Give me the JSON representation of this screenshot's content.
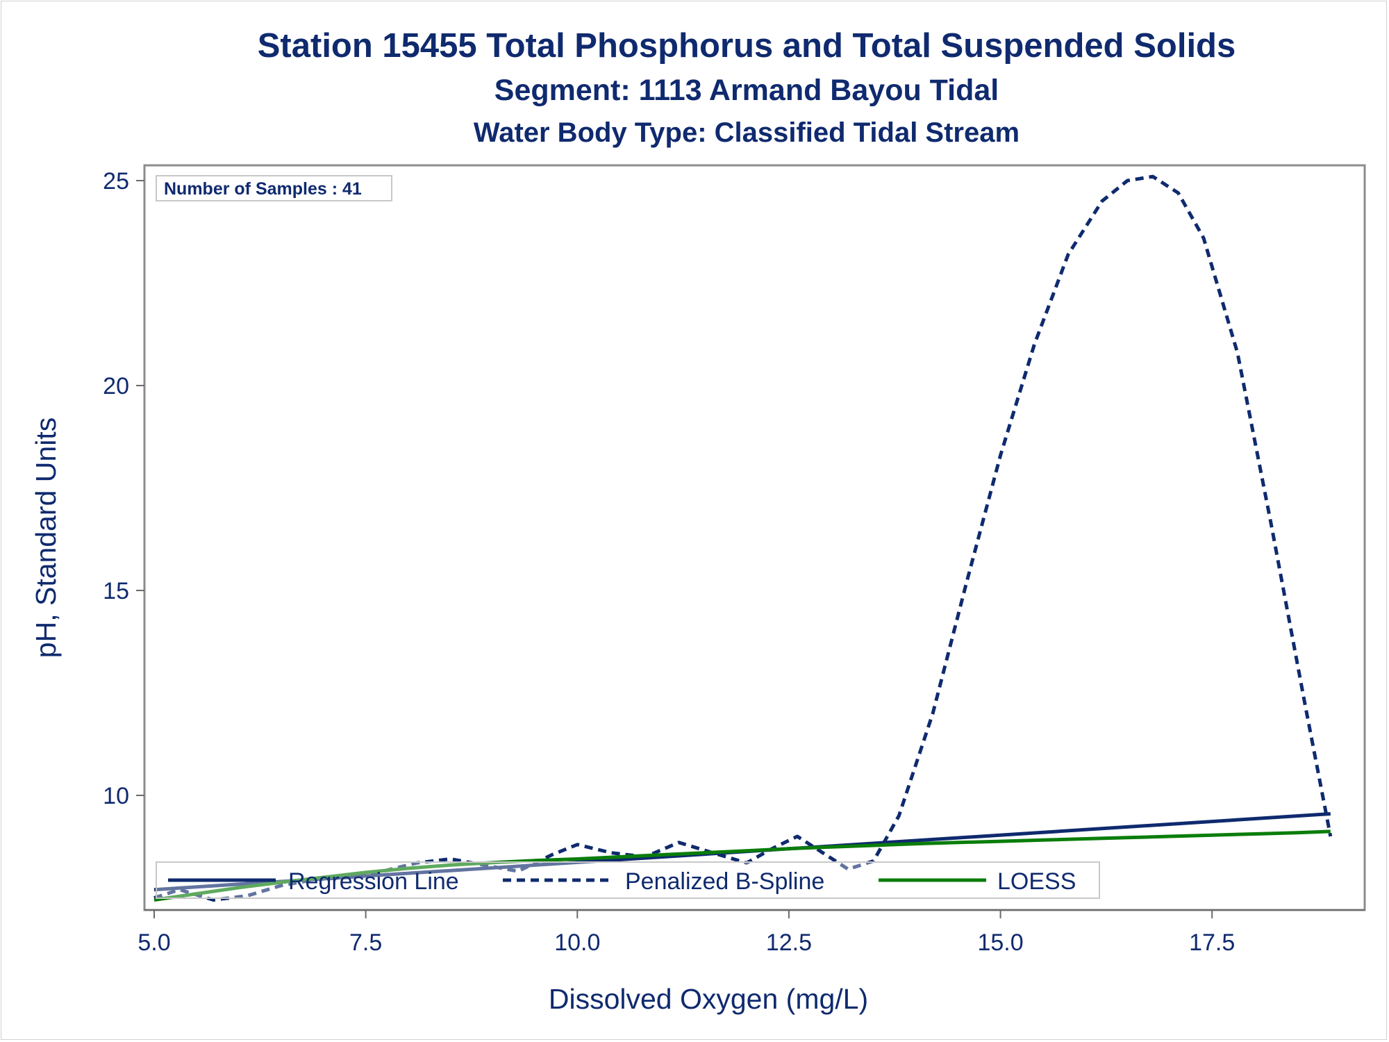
{
  "chart_data": {
    "type": "line",
    "title": "Station 15455  Total Phosphorus and Total Suspended Solids",
    "subtitle": [
      "Segment: 1113  Armand Bayou Tidal",
      "Water Body Type: Classified Tidal Stream"
    ],
    "xlabel": "Dissolved Oxygen (mg/L)",
    "ylabel": "pH, Standard Units",
    "xlim": [
      5.0,
      19.0
    ],
    "ylim": [
      7.4,
      25.4
    ],
    "x_ticks": [
      "5.0",
      "7.5",
      "10.0",
      "12.5",
      "15.0",
      "17.5"
    ],
    "y_ticks": [
      "10",
      "15",
      "20",
      "25"
    ],
    "x_tick_values": [
      5.0,
      7.5,
      10.0,
      12.5,
      15.0,
      17.5
    ],
    "y_tick_values": [
      10,
      15,
      20,
      25
    ],
    "annotation": "Number of Samples : 41",
    "grid": false,
    "legend_position": "bottom-inside",
    "series": [
      {
        "name": "Regression Line",
        "style": "solid",
        "color": "#0f2a6e",
        "x": [
          5.0,
          18.9
        ],
        "y": [
          7.7,
          9.55
        ]
      },
      {
        "name": "Penalized B-Spline",
        "style": "dashed",
        "color": "#0f2a6e",
        "x": [
          5.0,
          5.3,
          5.7,
          6.1,
          6.5,
          6.9,
          7.3,
          7.7,
          8.1,
          8.5,
          8.9,
          9.3,
          9.7,
          10.0,
          10.4,
          10.8,
          11.2,
          11.6,
          12.0,
          12.3,
          12.6,
          12.9,
          13.2,
          13.5,
          13.8,
          14.2,
          14.6,
          15.0,
          15.4,
          15.8,
          16.2,
          16.5,
          16.8,
          17.1,
          17.4,
          17.8,
          18.2,
          18.6,
          18.9
        ],
        "y": [
          7.5,
          7.7,
          7.45,
          7.55,
          7.8,
          7.95,
          8.0,
          8.15,
          8.35,
          8.45,
          8.3,
          8.15,
          8.55,
          8.8,
          8.6,
          8.5,
          8.85,
          8.6,
          8.35,
          8.7,
          9.0,
          8.6,
          8.2,
          8.4,
          9.5,
          12.0,
          15.2,
          18.3,
          21.0,
          23.2,
          24.5,
          25.0,
          25.1,
          24.7,
          23.6,
          20.8,
          16.6,
          12.2,
          9.0
        ]
      },
      {
        "name": "LOESS",
        "style": "solid",
        "color": "#0a7d0a",
        "x": [
          5.0,
          5.5,
          6.0,
          6.5,
          7.0,
          7.5,
          8.0,
          8.5,
          9.0,
          9.5,
          10.0,
          10.5,
          11.0,
          11.5,
          12.0,
          12.5,
          13.0,
          13.5,
          14.0,
          14.5,
          15.0,
          15.5,
          16.0,
          16.5,
          17.0,
          17.5,
          18.0,
          18.5,
          18.9
        ],
        "y": [
          7.45,
          7.6,
          7.75,
          7.88,
          8.0,
          8.12,
          8.22,
          8.3,
          8.36,
          8.41,
          8.45,
          8.5,
          8.55,
          8.6,
          8.65,
          8.7,
          8.74,
          8.78,
          8.82,
          8.85,
          8.88,
          8.91,
          8.94,
          8.97,
          9.0,
          9.03,
          9.06,
          9.09,
          9.12
        ]
      }
    ]
  }
}
